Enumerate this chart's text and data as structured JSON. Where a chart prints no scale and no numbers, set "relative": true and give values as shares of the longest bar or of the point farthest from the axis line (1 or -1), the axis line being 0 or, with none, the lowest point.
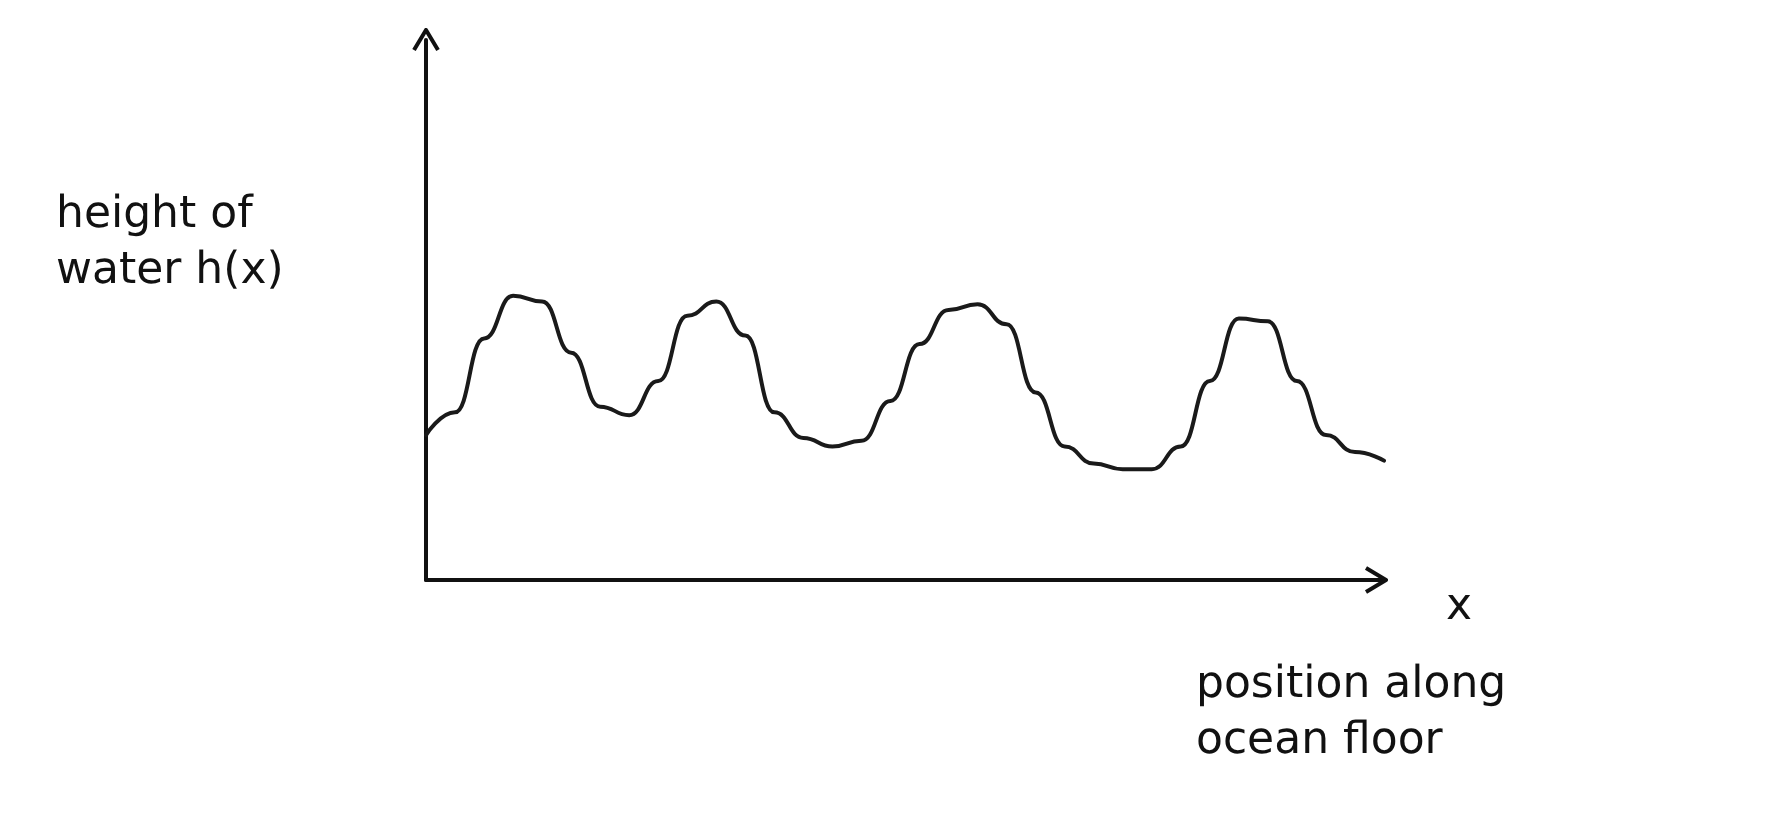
{
  "chart_data": {
    "type": "line",
    "relative": true,
    "ylabel": "height of water h(x)",
    "xlabel": "position along ocean floor",
    "annotations": [
      "x"
    ],
    "categories": [
      null,
      null,
      null,
      null,
      null,
      null,
      null,
      null,
      null,
      null,
      null,
      null,
      null,
      null,
      null,
      null,
      null,
      null,
      null,
      null,
      null,
      null,
      null,
      null,
      null,
      null,
      null,
      null,
      null,
      null,
      null,
      null,
      null,
      null
    ],
    "series": [
      {
        "color": "#1a1a1a",
        "values": [
          0.51,
          0.59,
          0.85,
          1,
          0.98,
          0.8,
          0.61,
          0.58,
          0.7,
          0.93,
          0.98,
          0.86,
          0.59,
          0.5,
          0.47,
          0.49,
          0.63,
          0.83,
          0.95,
          0.97,
          0.9,
          0.66,
          0.47,
          0.41,
          0.39,
          0.39,
          0.47,
          0.7,
          0.92,
          0.91,
          0.7,
          0.51,
          0.45,
          0.42
        ]
      }
    ],
    "grid": false,
    "marker": "none",
    "line_style": "solid"
  }
}
